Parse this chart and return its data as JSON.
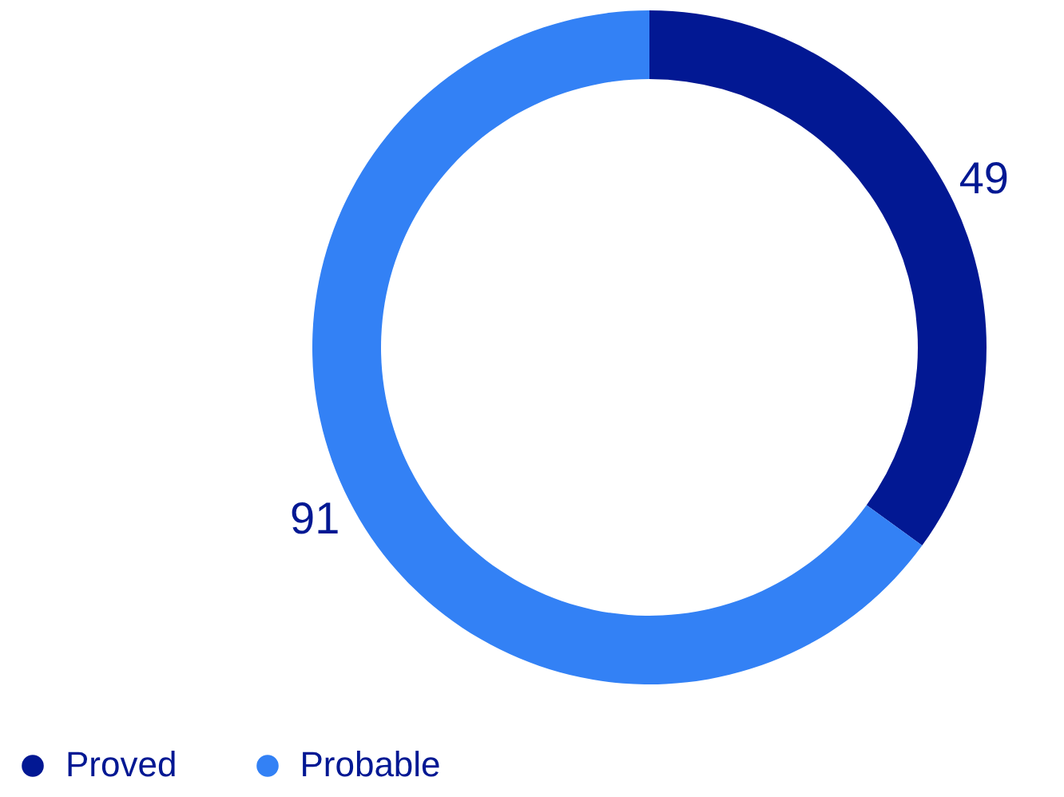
{
  "chart_data": {
    "type": "donut",
    "categories": [
      "Proved",
      "Probable"
    ],
    "values": [
      49,
      91
    ],
    "colors": [
      "#021893",
      "#3381f5"
    ],
    "data_labels": true,
    "legend": "bottom left"
  }
}
